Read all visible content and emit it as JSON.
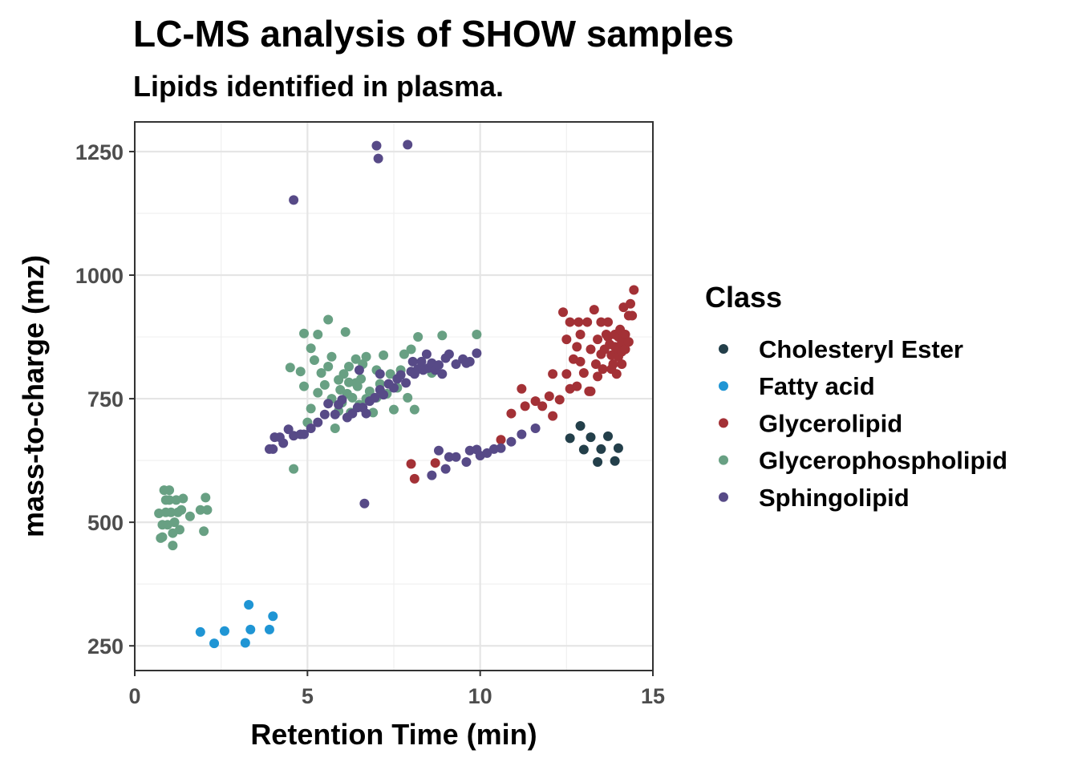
{
  "chart_data": {
    "type": "scatter",
    "title": "LC-MS analysis of SHOW samples",
    "subtitle": "Lipids identified in plasma.",
    "xlabel": "Retention Time (min)",
    "ylabel": "mass-to-charge (mz)",
    "xlim": [
      0,
      15
    ],
    "ylim": [
      200,
      1310
    ],
    "xticks": [
      0,
      5,
      10,
      15
    ],
    "yticks": [
      250,
      500,
      750,
      1000,
      1250
    ],
    "grid": true,
    "legend": {
      "title": "Class",
      "position": "right"
    },
    "series": [
      {
        "name": "Cholesteryl Ester",
        "color": "#233f4a",
        "points": [
          [
            12.6,
            670
          ],
          [
            12.9,
            695
          ],
          [
            13.0,
            647
          ],
          [
            13.2,
            672
          ],
          [
            13.4,
            622
          ],
          [
            13.5,
            648
          ],
          [
            13.7,
            674
          ],
          [
            13.9,
            624
          ],
          [
            14.0,
            650
          ]
        ]
      },
      {
        "name": "Fatty acid",
        "color": "#1f95d4",
        "points": [
          [
            1.9,
            278
          ],
          [
            2.3,
            255
          ],
          [
            2.6,
            280
          ],
          [
            3.2,
            256
          ],
          [
            3.3,
            333
          ],
          [
            3.35,
            283
          ],
          [
            3.9,
            283
          ],
          [
            4.0,
            310
          ]
        ]
      },
      {
        "name": "Glycerolipid",
        "color": "#a33136",
        "points": [
          [
            8.0,
            618
          ],
          [
            8.1,
            588
          ],
          [
            8.7,
            620
          ],
          [
            10.6,
            667
          ],
          [
            10.9,
            720
          ],
          [
            11.2,
            770
          ],
          [
            11.3,
            735
          ],
          [
            11.6,
            745
          ],
          [
            11.8,
            735
          ],
          [
            12.0,
            755
          ],
          [
            12.1,
            800
          ],
          [
            12.1,
            715
          ],
          [
            12.3,
            748
          ],
          [
            12.4,
            925
          ],
          [
            12.5,
            870
          ],
          [
            12.5,
            800
          ],
          [
            12.6,
            905
          ],
          [
            12.6,
            770
          ],
          [
            12.7,
            830
          ],
          [
            12.8,
            855
          ],
          [
            12.8,
            775
          ],
          [
            12.85,
            905
          ],
          [
            12.9,
            880
          ],
          [
            12.9,
            825
          ],
          [
            13.0,
            802
          ],
          [
            13.1,
            905
          ],
          [
            13.15,
            765
          ],
          [
            13.2,
            765
          ],
          [
            13.2,
            850
          ],
          [
            13.3,
            930
          ],
          [
            13.35,
            820
          ],
          [
            13.4,
            870
          ],
          [
            13.4,
            795
          ],
          [
            13.5,
            905
          ],
          [
            13.5,
            840
          ],
          [
            13.55,
            810
          ],
          [
            13.6,
            850
          ],
          [
            13.65,
            880
          ],
          [
            13.7,
            905
          ],
          [
            13.7,
            875
          ],
          [
            13.75,
            860
          ],
          [
            13.8,
            838
          ],
          [
            13.8,
            810
          ],
          [
            13.85,
            820
          ],
          [
            13.9,
            880
          ],
          [
            13.9,
            855
          ],
          [
            13.95,
            800
          ],
          [
            14.0,
            875
          ],
          [
            14.0,
            850
          ],
          [
            14.0,
            835
          ],
          [
            14.05,
            890
          ],
          [
            14.1,
            865
          ],
          [
            14.1,
            845
          ],
          [
            14.1,
            820
          ],
          [
            14.15,
            935
          ],
          [
            14.2,
            880
          ],
          [
            14.2,
            850
          ],
          [
            14.3,
            865
          ],
          [
            14.3,
            918
          ],
          [
            14.35,
            942
          ],
          [
            14.4,
            918
          ],
          [
            14.45,
            970
          ]
        ]
      },
      {
        "name": "Glycerophospholipid",
        "color": "#68a083",
        "points": [
          [
            0.7,
            518
          ],
          [
            0.75,
            468
          ],
          [
            0.8,
            495
          ],
          [
            0.8,
            470
          ],
          [
            0.85,
            565
          ],
          [
            0.9,
            545
          ],
          [
            0.9,
            520
          ],
          [
            0.95,
            495
          ],
          [
            1.0,
            565
          ],
          [
            1.0,
            545
          ],
          [
            1.05,
            520
          ],
          [
            1.1,
            478
          ],
          [
            1.1,
            453
          ],
          [
            1.15,
            500
          ],
          [
            1.2,
            545
          ],
          [
            1.25,
            520
          ],
          [
            1.3,
            485
          ],
          [
            1.35,
            525
          ],
          [
            1.4,
            548
          ],
          [
            1.6,
            512
          ],
          [
            1.9,
            525
          ],
          [
            2.0,
            482
          ],
          [
            2.05,
            550
          ],
          [
            2.1,
            525
          ],
          [
            4.5,
            813
          ],
          [
            4.8,
            805
          ],
          [
            4.9,
            882
          ],
          [
            5.0,
            702
          ],
          [
            5.1,
            852
          ],
          [
            5.2,
            828
          ],
          [
            5.3,
            880
          ],
          [
            5.4,
            802
          ],
          [
            5.5,
            778
          ],
          [
            5.6,
            910
          ],
          [
            5.7,
            750
          ],
          [
            5.7,
            835
          ],
          [
            5.8,
            690
          ],
          [
            5.9,
            725
          ],
          [
            5.95,
            768
          ],
          [
            6.0,
            742
          ],
          [
            6.05,
            800
          ],
          [
            6.1,
            885
          ],
          [
            6.15,
            760
          ],
          [
            6.2,
            783
          ],
          [
            6.25,
            722
          ],
          [
            6.3,
            752
          ],
          [
            6.4,
            830
          ],
          [
            6.45,
            775
          ],
          [
            6.5,
            738
          ],
          [
            6.55,
            790
          ],
          [
            6.6,
            820
          ],
          [
            6.7,
            750
          ],
          [
            6.8,
            765
          ],
          [
            6.9,
            722
          ],
          [
            7.0,
            808
          ],
          [
            7.1,
            780
          ],
          [
            7.2,
            838
          ],
          [
            7.3,
            760
          ],
          [
            7.4,
            800
          ],
          [
            7.5,
            728
          ],
          [
            7.6,
            772
          ],
          [
            7.7,
            808
          ],
          [
            7.8,
            840
          ],
          [
            7.9,
            752
          ],
          [
            8.0,
            850
          ],
          [
            8.1,
            728
          ],
          [
            8.2,
            875
          ],
          [
            8.6,
            802
          ],
          [
            8.9,
            878
          ],
          [
            9.9,
            880
          ],
          [
            4.6,
            608
          ],
          [
            4.9,
            775
          ],
          [
            5.1,
            730
          ],
          [
            5.3,
            762
          ],
          [
            5.6,
            815
          ],
          [
            5.9,
            788
          ],
          [
            6.2,
            815
          ],
          [
            6.4,
            782
          ],
          [
            6.7,
            835
          ],
          [
            7.0,
            752
          ]
        ]
      },
      {
        "name": "Sphingolipid",
        "color": "#574a87",
        "points": [
          [
            3.9,
            648
          ],
          [
            4.0,
            648
          ],
          [
            4.05,
            672
          ],
          [
            4.2,
            672
          ],
          [
            4.3,
            660
          ],
          [
            4.45,
            688
          ],
          [
            4.6,
            675
          ],
          [
            4.8,
            678
          ],
          [
            4.9,
            678
          ],
          [
            5.1,
            690
          ],
          [
            5.3,
            702
          ],
          [
            5.5,
            718
          ],
          [
            5.6,
            740
          ],
          [
            5.8,
            718
          ],
          [
            5.9,
            738
          ],
          [
            6.0,
            748
          ],
          [
            6.15,
            712
          ],
          [
            6.3,
            720
          ],
          [
            6.45,
            732
          ],
          [
            6.6,
            732
          ],
          [
            6.7,
            720
          ],
          [
            6.8,
            745
          ],
          [
            6.95,
            752
          ],
          [
            7.1,
            768
          ],
          [
            7.2,
            758
          ],
          [
            7.35,
            780
          ],
          [
            7.5,
            772
          ],
          [
            7.6,
            790
          ],
          [
            7.7,
            798
          ],
          [
            7.85,
            782
          ],
          [
            8.0,
            805
          ],
          [
            8.05,
            825
          ],
          [
            8.1,
            800
          ],
          [
            8.2,
            810
          ],
          [
            8.3,
            825
          ],
          [
            8.35,
            808
          ],
          [
            8.45,
            840
          ],
          [
            8.5,
            812
          ],
          [
            8.6,
            822
          ],
          [
            8.7,
            808
          ],
          [
            8.8,
            818
          ],
          [
            8.9,
            800
          ],
          [
            9.0,
            832
          ],
          [
            9.1,
            840
          ],
          [
            9.3,
            820
          ],
          [
            9.5,
            830
          ],
          [
            9.6,
            822
          ],
          [
            9.7,
            825
          ],
          [
            9.9,
            842
          ],
          [
            6.65,
            538
          ],
          [
            4.6,
            1152
          ],
          [
            7.0,
            1262
          ],
          [
            7.05,
            1236
          ],
          [
            7.9,
            1264
          ],
          [
            6.5,
            808
          ],
          [
            7.1,
            800
          ],
          [
            8.6,
            595
          ],
          [
            8.8,
            645
          ],
          [
            9.0,
            608
          ],
          [
            9.1,
            632
          ],
          [
            9.3,
            632
          ],
          [
            9.6,
            622
          ],
          [
            9.7,
            645
          ],
          [
            9.9,
            647
          ],
          [
            10.0,
            635
          ],
          [
            10.2,
            640
          ],
          [
            10.4,
            648
          ],
          [
            10.6,
            650
          ],
          [
            10.9,
            663
          ],
          [
            11.2,
            678
          ],
          [
            11.6,
            690
          ]
        ]
      }
    ]
  }
}
